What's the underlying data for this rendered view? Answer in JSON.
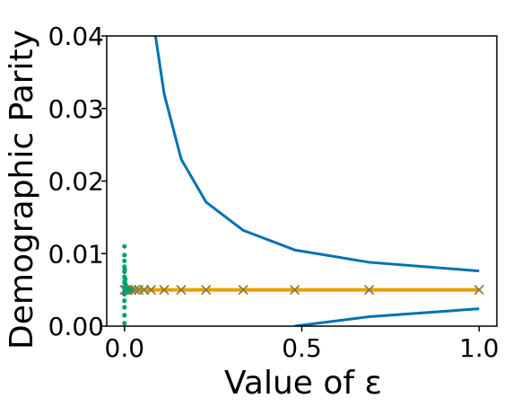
{
  "chart_data": {
    "type": "line",
    "title": "",
    "xlabel": "Value of ε",
    "ylabel": "Demographic Parity",
    "xlim": [
      -0.05,
      1.05
    ],
    "ylim": [
      0,
      0.04
    ],
    "x_ticks": [
      0.0,
      0.5,
      1.0
    ],
    "x_tick_labels": [
      "0.0",
      "0.5",
      "1.0"
    ],
    "y_ticks": [
      0.0,
      0.01,
      0.02,
      0.03,
      0.04
    ],
    "y_tick_labels": [
      "0.00",
      "0.01",
      "0.02",
      "0.03",
      "0.04"
    ],
    "grid": false,
    "legend": "none",
    "series": [
      {
        "role": "upper-bound",
        "color": "#0072b2",
        "x": [
          0.0875,
          0.112,
          0.16,
          0.23,
          0.335,
          0.48,
          0.69,
          1.0
        ],
        "y": [
          0.04,
          0.032,
          0.023,
          0.0171,
          0.0132,
          0.0105,
          0.0088,
          0.0076
        ]
      },
      {
        "role": "lower-bound",
        "color": "#0072b2",
        "x": [
          0.48,
          0.69,
          1.0
        ],
        "y": [
          0.0,
          0.0013,
          0.0024
        ]
      },
      {
        "role": "constant-x-markers",
        "color": "#e69f00",
        "marker": "x",
        "x": [
          0.0,
          0.005,
          0.01,
          0.02,
          0.03,
          0.04,
          0.055,
          0.075,
          0.112,
          0.16,
          0.23,
          0.335,
          0.48,
          0.69,
          1.0
        ],
        "y": [
          0.005,
          0.005,
          0.005,
          0.005,
          0.005,
          0.005,
          0.005,
          0.005,
          0.005,
          0.005,
          0.005,
          0.005,
          0.005,
          0.005,
          0.005
        ]
      },
      {
        "role": "scatter-near-zero",
        "color": "#009e73",
        "marker": "dot",
        "x": [
          0.0,
          0.0,
          0.0,
          0.0,
          0.0,
          0.0,
          0.0,
          0.0,
          0.0,
          0.0,
          0.0,
          0.0,
          0.0,
          0.001,
          0.001,
          0.001,
          0.002,
          0.002,
          0.003,
          0.004,
          0.005,
          0.006,
          0.008,
          0.01,
          0.012,
          0.015,
          0.018
        ],
        "y": [
          0.011,
          0.0098,
          0.009,
          0.0082,
          0.0075,
          0.0068,
          0.006,
          0.0052,
          0.0044,
          0.0035,
          0.0026,
          0.0015,
          0.0004,
          0.0078,
          0.0062,
          0.0046,
          0.0065,
          0.0053,
          0.0058,
          0.0055,
          0.0052,
          0.0053,
          0.0051,
          0.0051,
          0.005,
          0.005,
          0.005
        ]
      }
    ]
  }
}
